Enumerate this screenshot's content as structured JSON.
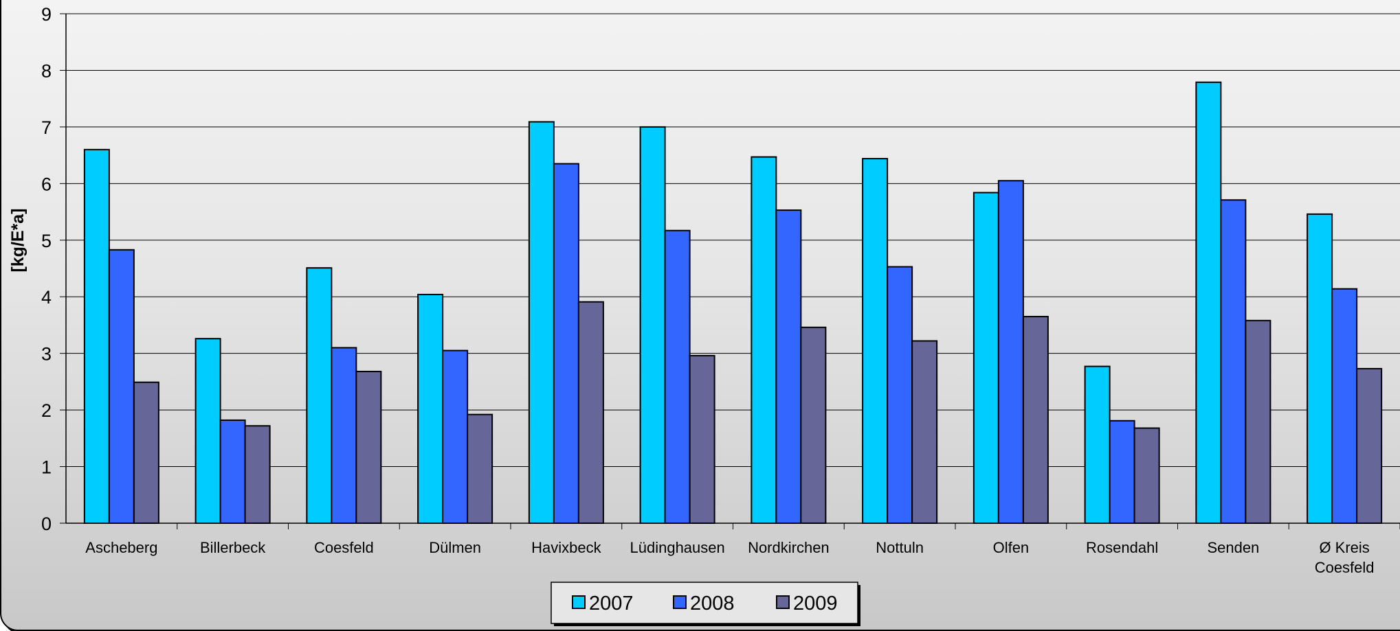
{
  "chart_data": {
    "type": "bar",
    "title": "",
    "xlabel": "",
    "ylabel": "[kg/E*a]",
    "ylim": [
      0,
      9
    ],
    "yticks": [
      "0",
      "1",
      "2",
      "3",
      "4",
      "5",
      "6",
      "7",
      "8",
      "9"
    ],
    "grid": true,
    "legend_position": "bottom-center",
    "categories": [
      [
        "Ascheberg"
      ],
      [
        "Billerbeck"
      ],
      [
        "Coesfeld"
      ],
      [
        "Dülmen"
      ],
      [
        "Havixbeck"
      ],
      [
        "Lüdinghausen"
      ],
      [
        "Nordkirchen"
      ],
      [
        "Nottuln"
      ],
      [
        "Olfen"
      ],
      [
        "Rosendahl"
      ],
      [
        "Senden"
      ],
      [
        "Ø Kreis",
        "Coesfeld"
      ]
    ],
    "series": [
      {
        "name": "2007",
        "color": "#00ccff",
        "values": [
          6.6,
          3.26,
          4.51,
          4.04,
          7.09,
          7.0,
          6.47,
          6.44,
          5.84,
          2.77,
          7.79,
          5.46
        ]
      },
      {
        "name": "2008",
        "color": "#3366ff",
        "values": [
          4.83,
          1.82,
          3.1,
          3.05,
          6.35,
          5.17,
          5.53,
          4.53,
          6.05,
          1.81,
          5.71,
          4.14
        ]
      },
      {
        "name": "2009",
        "color": "#666699",
        "values": [
          2.49,
          1.72,
          2.68,
          1.92,
          3.91,
          2.96,
          3.46,
          3.22,
          3.65,
          1.68,
          3.58,
          2.73
        ]
      }
    ]
  }
}
